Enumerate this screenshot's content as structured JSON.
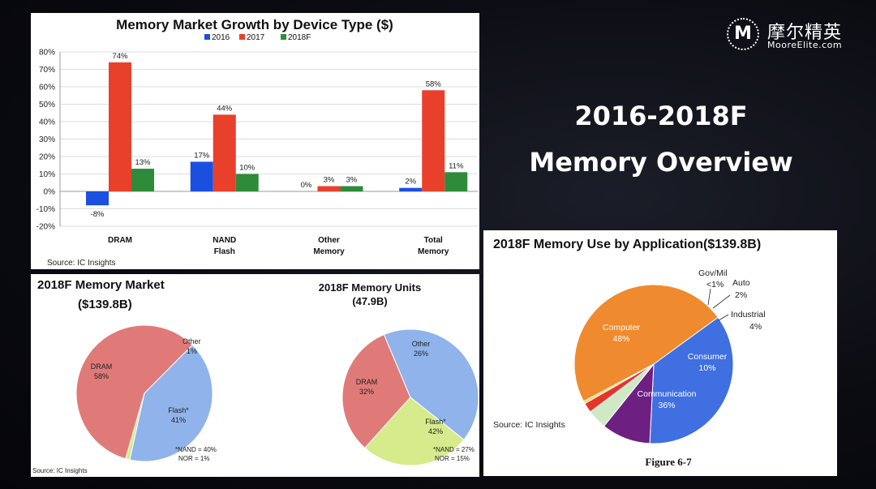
{
  "slide": {
    "title_line1": "2016-2018F",
    "title_line2": "Memory Overview",
    "logo_mark": "M",
    "logo_cn": "摩尔精英",
    "logo_en": "MooreElite.com"
  },
  "chart_data": [
    {
      "id": "growth",
      "type": "bar",
      "title": "Memory Market Growth by Device Type ($)",
      "categories": [
        [
          "DRAM"
        ],
        [
          "NAND",
          "Flash"
        ],
        [
          "Other",
          "Memory"
        ],
        [
          "Total",
          "Memory"
        ]
      ],
      "series": [
        {
          "name": "2016",
          "values": [
            -8,
            17,
            0,
            2
          ],
          "labels": [
            "-8%",
            "17%",
            "0%",
            "2%"
          ],
          "color": "#1a4fe0"
        },
        {
          "name": "2017",
          "values": [
            74,
            44,
            3,
            58
          ],
          "labels": [
            "74%",
            "44%",
            "3%",
            "58%"
          ],
          "color": "#e8402b"
        },
        {
          "name": "2018F",
          "values": [
            13,
            10,
            3,
            11
          ],
          "labels": [
            "13%",
            "10%",
            "3%",
            "11%"
          ],
          "color": "#2e8b3a"
        }
      ],
      "ylim": [
        -20,
        80
      ],
      "yticks": [
        "-20%",
        "-10%",
        "0%",
        "10%",
        "20%",
        "30%",
        "40%",
        "50%",
        "60%",
        "70%",
        "80%"
      ],
      "grid": true,
      "legend": "top",
      "source": "Source:  IC Insights"
    },
    {
      "id": "market",
      "type": "pie",
      "title_line1": "2018F Memory Market",
      "title_line2": "($139.8B)",
      "slices": [
        {
          "label": "DRAM",
          "value": 58,
          "text": "58%",
          "color": "#e07a78"
        },
        {
          "label": "Flash*",
          "value": 41,
          "text": "41%",
          "color": "#8fb3ea"
        },
        {
          "label": "Other",
          "value": 1,
          "text": "1%",
          "color": "#d6eb8c"
        }
      ],
      "note_line1": "*NAND = 40%",
      "note_line2": "NOR = 1%",
      "source": "Source:  IC Insights"
    },
    {
      "id": "units",
      "type": "pie",
      "title_line1": "2018F Memory Units",
      "title_line2": "(47.9B)",
      "slices": [
        {
          "label": "DRAM",
          "value": 32,
          "text": "32%",
          "color": "#e07a78"
        },
        {
          "label": "Flash*",
          "value": 42,
          "text": "42%",
          "color": "#8fb3ea"
        },
        {
          "label": "Other",
          "value": 26,
          "text": "26%",
          "color": "#d6eb8c"
        }
      ],
      "note_line1": "*NAND = 27%",
      "note_line2": "NOR = 15%"
    },
    {
      "id": "application",
      "type": "pie",
      "title": "2018F Memory Use by Application($139.8B)",
      "slices": [
        {
          "label": "Computer",
          "value": 48,
          "text": "48%",
          "color": "#ef8a2f"
        },
        {
          "label": "Communication",
          "value": 36,
          "text": "36%",
          "color": "#3f6fe0"
        },
        {
          "label": "Consumer",
          "value": 10,
          "text": "10%",
          "color": "#6e1f82"
        },
        {
          "label": "Industrial",
          "value": 4,
          "text": "4%",
          "color": "#cfe9c4"
        },
        {
          "label": "Auto",
          "value": 2,
          "text": "2%",
          "color": "#e5342a"
        },
        {
          "label": "Gov/Mil",
          "value": 0.5,
          "text": "<1%",
          "color": "#f3d34a"
        }
      ],
      "source": "Source:  IC Insights",
      "caption": "Figure 6-7"
    }
  ]
}
